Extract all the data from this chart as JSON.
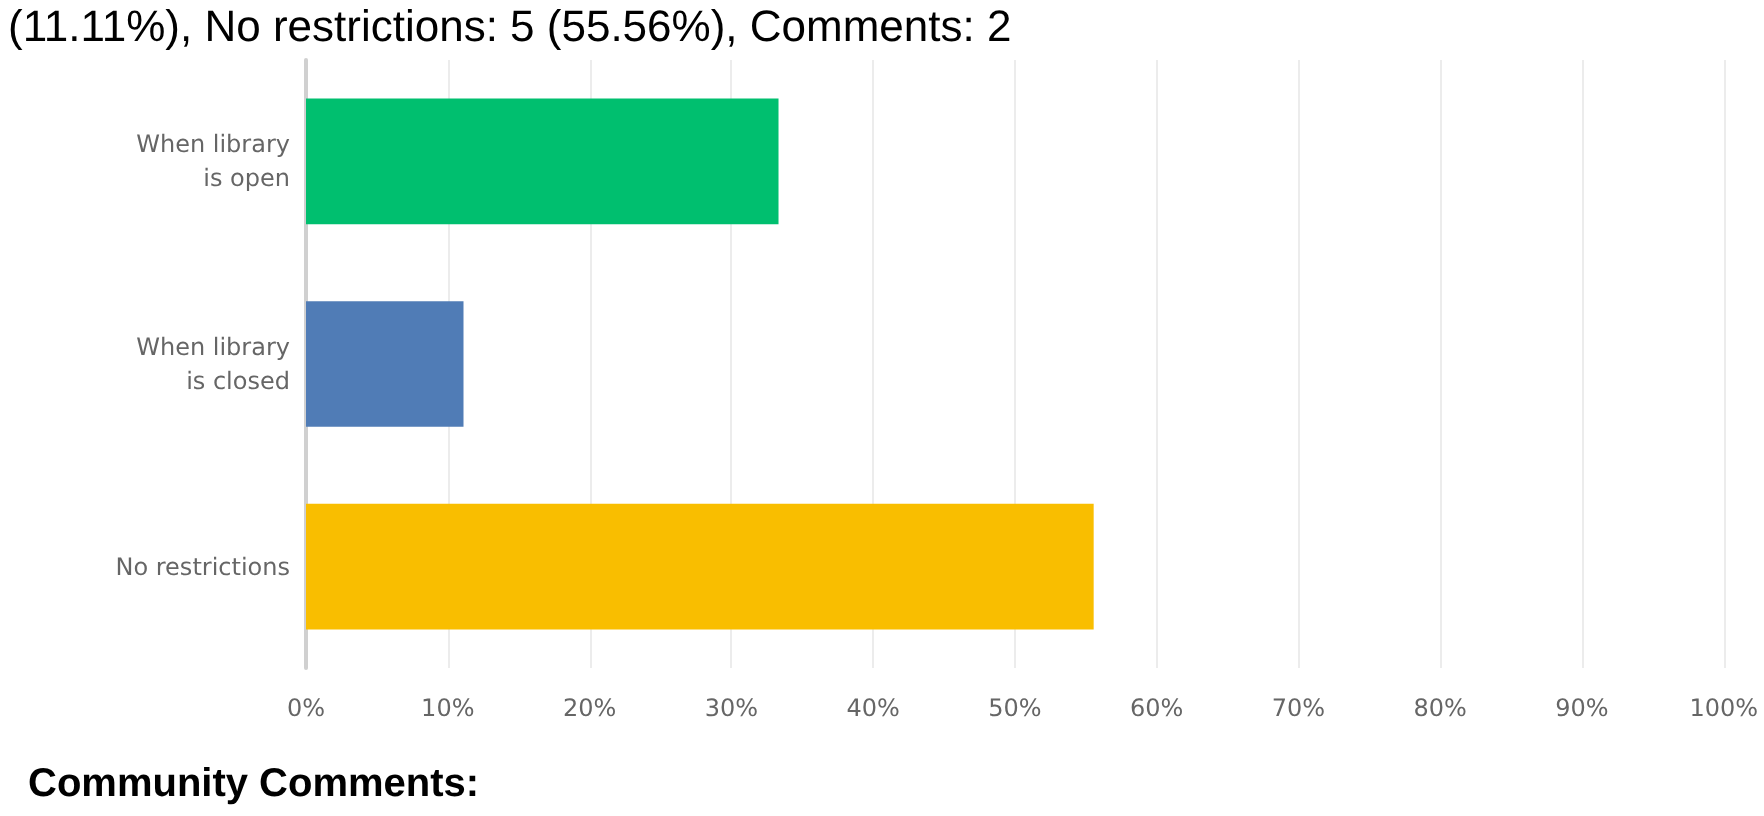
{
  "chart_data": {
    "type": "bar",
    "orientation": "horizontal",
    "categories": [
      "When library\nis open",
      "When library\nis closed",
      "No restrictions"
    ],
    "values": [
      33.33,
      11.11,
      55.56
    ],
    "colors": [
      "#00bf6f",
      "#507cb6",
      "#f9be00"
    ],
    "xlim": [
      0,
      100
    ],
    "xticks": [
      {
        "value": 0,
        "label": "0%"
      },
      {
        "value": 10,
        "label": "10%"
      },
      {
        "value": 20,
        "label": "20%"
      },
      {
        "value": 30,
        "label": "30%"
      },
      {
        "value": 40,
        "label": "40%"
      },
      {
        "value": 50,
        "label": "50%"
      },
      {
        "value": 60,
        "label": "60%"
      },
      {
        "value": 70,
        "label": "70%"
      },
      {
        "value": 80,
        "label": "80%"
      },
      {
        "value": 90,
        "label": "90%"
      },
      {
        "value": 100,
        "label": "100%"
      }
    ],
    "grid": "x",
    "annotations": [
      "(11.11%), No restrictions: 5 (55.56%), Comments: 2",
      "Community Comments:"
    ]
  }
}
